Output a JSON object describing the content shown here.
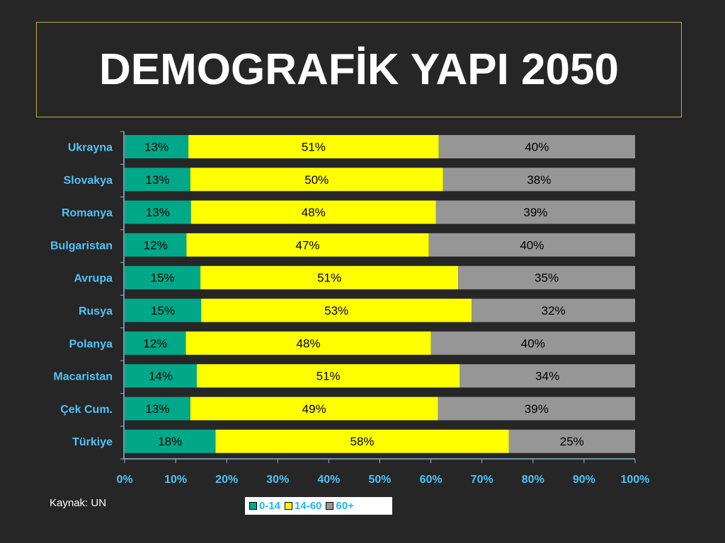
{
  "title": "DEMOGRAFİK YAPI 2050",
  "source": "Kaynak: UN",
  "colors": {
    "background": "#262626",
    "title_border": "#b8b040",
    "axis_label": "#4fc3f7",
    "series": [
      "#00a88a",
      "#ffff00",
      "#969696"
    ]
  },
  "chart_data": {
    "type": "bar",
    "orientation": "horizontal",
    "stacked": "percent",
    "categories": [
      "Ukrayna",
      "Slovakya",
      "Romanya",
      "Bulgaristan",
      "Avrupa",
      "Rusya",
      "Polanya",
      "Macaristan",
      "Çek Cum.",
      "Türkiye"
    ],
    "series": [
      {
        "name": "0-14",
        "values": [
          13,
          13,
          13,
          12,
          15,
          15,
          12,
          14,
          13,
          18
        ]
      },
      {
        "name": "14-60",
        "values": [
          51,
          50,
          48,
          47,
          51,
          53,
          48,
          51,
          49,
          58
        ]
      },
      {
        "name": "60+",
        "values": [
          40,
          38,
          39,
          40,
          35,
          32,
          40,
          34,
          39,
          25
        ]
      }
    ],
    "value_suffix": "%",
    "xlim": [
      0,
      100
    ],
    "xticks": [
      "0%",
      "10%",
      "20%",
      "30%",
      "40%",
      "50%",
      "60%",
      "70%",
      "80%",
      "90%",
      "100%"
    ],
    "legend_position": "bottom",
    "grid": false
  }
}
